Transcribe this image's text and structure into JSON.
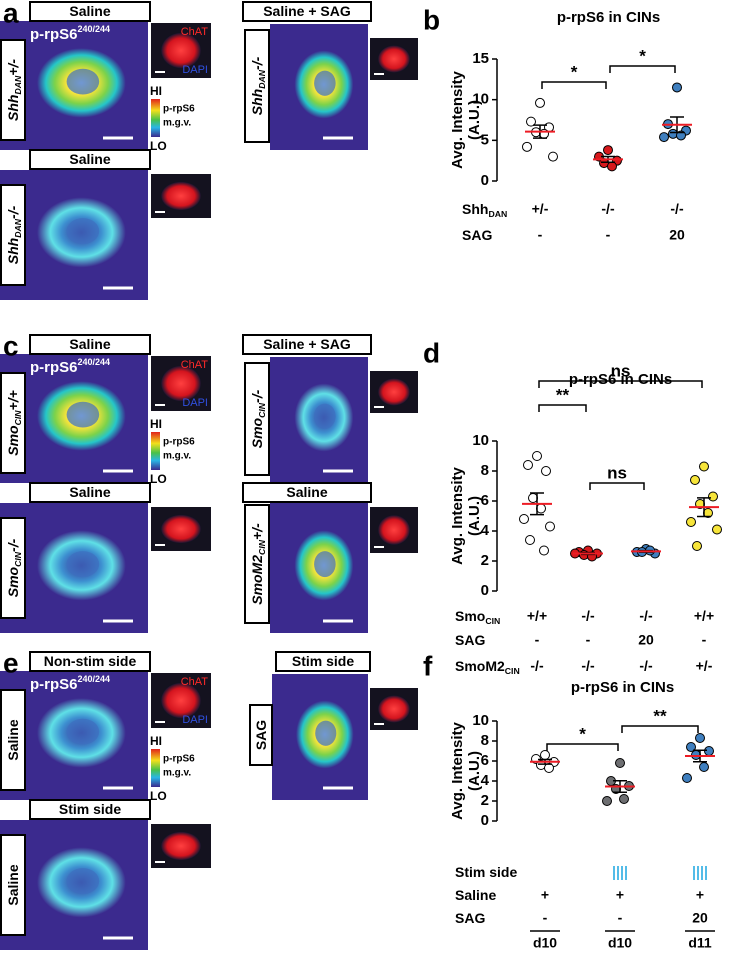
{
  "panels": [
    {
      "letter": "a",
      "stain": {
        "text": "p-rpS6",
        "sup": "240/244"
      },
      "chat": "ChAT",
      "dapi": "DAPI",
      "scale": [
        "HI",
        "p-rpS6",
        "m.g.v.",
        "LO"
      ],
      "images": [
        {
          "condition": "Saline",
          "side": {
            "text": "Shh",
            "sub": "DAN",
            "suffix": "+/-"
          }
        },
        {
          "condition": "Saline + SAG",
          "side": {
            "text": "Shh",
            "sub": "DAN",
            "suffix": "-/-"
          }
        },
        {
          "condition": "Saline",
          "side": {
            "text": "Shh",
            "sub": "DAN",
            "suffix": "-/-"
          }
        }
      ]
    },
    {
      "letter": "c",
      "stain": {
        "text": "p-rpS6",
        "sup": "240/244"
      },
      "chat": "ChAT",
      "dapi": "DAPI",
      "scale": [
        "HI",
        "p-rpS6",
        "m.g.v.",
        "LO"
      ],
      "images": [
        {
          "condition": "Saline",
          "side": {
            "text": "Smo",
            "sub": "CIN",
            "suffix": "+/+"
          }
        },
        {
          "condition": "Saline + SAG",
          "side": {
            "text": "Smo",
            "sub": "CIN",
            "suffix": "-/-"
          }
        },
        {
          "condition": "Saline",
          "side": {
            "text": "Smo",
            "sub": "CIN",
            "suffix": "-/-"
          }
        },
        {
          "condition": "Saline",
          "side": {
            "text": "SmoM2",
            "sub": "CIN",
            "suffix": "+/-"
          }
        }
      ]
    },
    {
      "letter": "e",
      "stain": {
        "text": "p-rpS6",
        "sup": "240/244"
      },
      "chat": "ChAT",
      "dapi": "DAPI",
      "scale": [
        "HI",
        "p-rpS6",
        "m.g.v.",
        "LO"
      ],
      "images": [
        {
          "condition": "Non-stim side",
          "side": {
            "text": "Saline"
          }
        },
        {
          "condition": "Stim side",
          "side": {
            "text": "SAG"
          }
        },
        {
          "condition": "Stim side",
          "side": {
            "text": "Saline"
          }
        }
      ]
    }
  ],
  "chart_data": [
    {
      "type": "dot",
      "letter": "b",
      "title": "p-rpS6 in CINs",
      "ylabel": [
        "Avg. Intensity",
        "(A.U.)"
      ],
      "ylim": [
        0,
        15
      ],
      "yticks": [
        0,
        5,
        10,
        15
      ],
      "mean_color": "#ed1c24",
      "groups": [
        {
          "color": "#ffffff",
          "points": [
            9.6,
            7.3,
            6.6,
            6.0,
            5.8,
            4.2,
            3.0
          ],
          "mean": 6.07,
          "sem": 0.8
        },
        {
          "color": "#d7191c",
          "points": [
            3.8,
            3.0,
            2.5,
            2.2,
            1.8
          ],
          "mean": 2.66,
          "sem": 0.35
        },
        {
          "color": "#3f7fbf",
          "points": [
            11.5,
            7.0,
            6.2,
            5.8,
            5.6,
            5.4
          ],
          "mean": 6.92,
          "sem": 0.95
        }
      ],
      "significance": [
        {
          "from": 0,
          "to": 1,
          "label": "*"
        },
        {
          "from": 1,
          "to": 2,
          "label": "*"
        }
      ],
      "conditions": [
        {
          "label": "Shh",
          "sub": "DAN",
          "values": [
            "+/-",
            "-/-",
            "-/-"
          ]
        },
        {
          "label": "SAG",
          "values": [
            "-",
            "-",
            "20"
          ]
        }
      ]
    },
    {
      "type": "dot",
      "letter": "d",
      "title": "p-rpS6 in CINs",
      "ylabel": [
        "Avg. Intensity",
        "(A.U.)"
      ],
      "ylim": [
        0,
        10
      ],
      "yticks": [
        0,
        2,
        4,
        6,
        8,
        10
      ],
      "mean_color": "#ed1c24",
      "groups": [
        {
          "color": "#ffffff",
          "points": [
            9.0,
            8.4,
            8.0,
            6.2,
            5.5,
            4.8,
            4.3,
            3.4,
            2.7
          ],
          "mean": 5.81,
          "sem": 0.72
        },
        {
          "color": "#d7191c",
          "points": [
            2.7,
            2.6,
            2.5,
            2.4,
            2.3,
            2.5
          ],
          "mean": 2.5,
          "sem": 0.06
        },
        {
          "color": "#3f7fbf",
          "points": [
            2.8,
            2.6,
            2.5,
            2.6,
            2.7
          ],
          "mean": 2.64,
          "sem": 0.05
        },
        {
          "color": "#f7e53a",
          "points": [
            8.3,
            7.4,
            6.3,
            5.8,
            5.2,
            4.6,
            4.1,
            3.0
          ],
          "mean": 5.59,
          "sem": 0.62
        }
      ],
      "significance": [
        {
          "from": 0,
          "to": 1,
          "label": "**"
        },
        {
          "from": 0,
          "to": 3,
          "label": "ns"
        },
        {
          "from": 1,
          "to": 2,
          "label": "ns"
        }
      ],
      "conditions": [
        {
          "label": "Smo",
          "sub": "CIN",
          "values": [
            "+/+",
            "-/-",
            "-/-",
            "+/+"
          ]
        },
        {
          "label": "SAG",
          "values": [
            "-",
            "-",
            "20",
            "-"
          ]
        },
        {
          "label": "SmoM2",
          "sub": "CIN",
          "values": [
            "-/-",
            "-/-",
            "-/-",
            "+/-"
          ]
        }
      ]
    },
    {
      "type": "dot",
      "letter": "f",
      "title": "p-rpS6 in CINs",
      "ylabel": [
        "Avg. Intensity",
        "(A.U.)"
      ],
      "ylim": [
        0,
        10
      ],
      "yticks": [
        0,
        2,
        4,
        6,
        8,
        10
      ],
      "mean_color": "#ed1c24",
      "groups": [
        {
          "color": "#ffffff",
          "points": [
            6.6,
            6.2,
            5.9,
            5.6,
            5.3
          ],
          "mean": 5.92,
          "sem": 0.23
        },
        {
          "color": "#6d6e71",
          "points": [
            5.8,
            4.0,
            3.5,
            3.2,
            2.2,
            2.0
          ],
          "mean": 3.45,
          "sem": 0.57
        },
        {
          "color": "#3f7fbf",
          "points": [
            8.3,
            7.4,
            7.0,
            6.6,
            5.4,
            4.3
          ],
          "mean": 6.5,
          "sem": 0.58
        }
      ],
      "significance": [
        {
          "from": 0,
          "to": 1,
          "label": "*"
        },
        {
          "from": 1,
          "to": 2,
          "label": "**"
        }
      ],
      "conditions": [
        {
          "label": "Stim side",
          "stim": [
            false,
            true,
            true
          ],
          "color": "#29abe2"
        },
        {
          "label": "Saline",
          "values": [
            "+",
            "+",
            "+"
          ]
        },
        {
          "label": "SAG",
          "values": [
            "-",
            "-",
            "20"
          ]
        },
        {
          "values": [
            "d10",
            "d10",
            "d11"
          ],
          "underline": true
        }
      ]
    }
  ]
}
